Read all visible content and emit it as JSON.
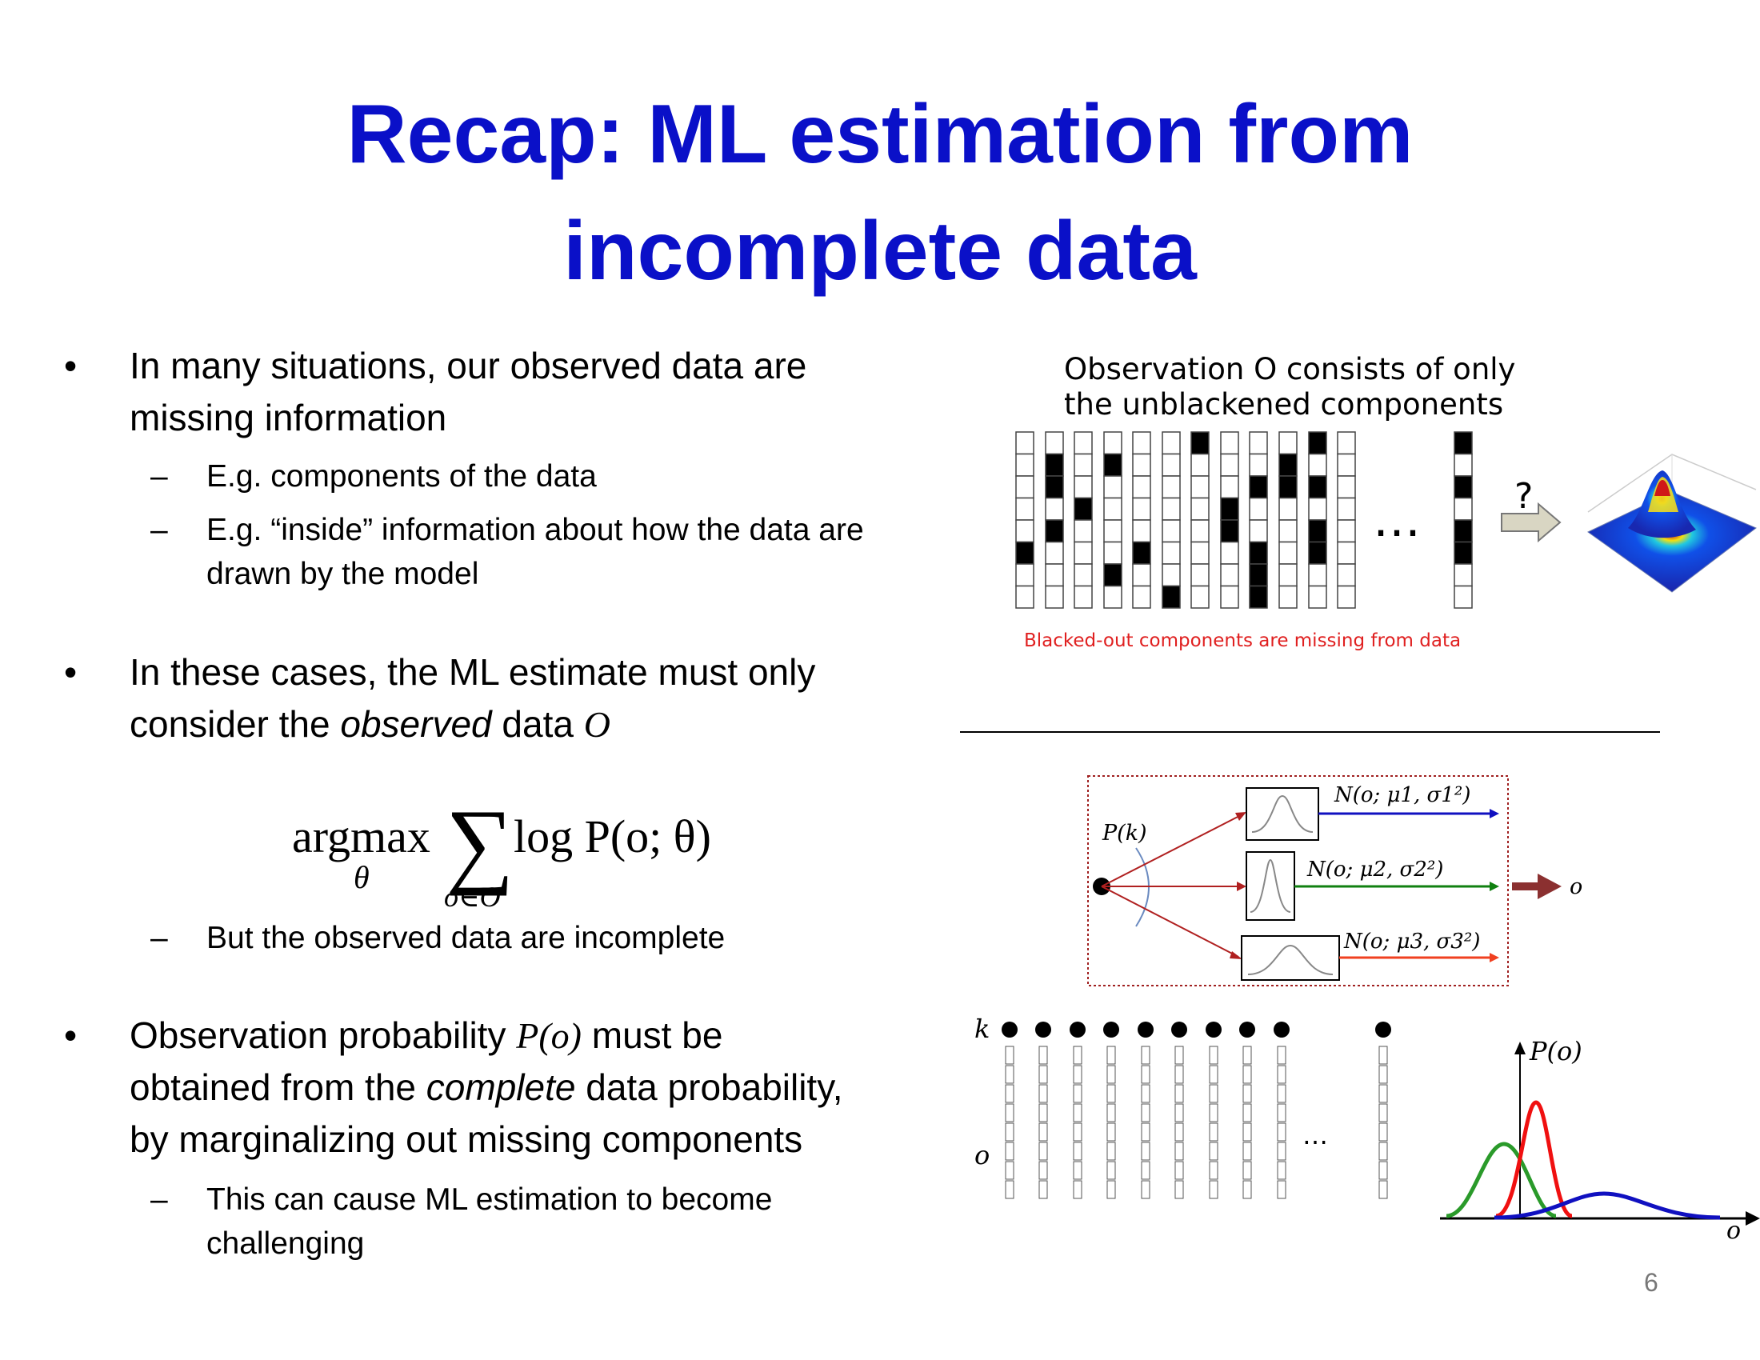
{
  "slide": {
    "title_line1": "Recap: ML estimation from",
    "title_line2": "incomplete data",
    "bullet1": {
      "line1": "In many situations, our observed data are",
      "line2": "missing information",
      "sub1": "E.g. components of the data",
      "sub2_line1": "E.g. “inside” information about how the data are",
      "sub2_line2": "drawn by the model"
    },
    "bullet2": {
      "line1": "In these cases, the ML estimate must only",
      "line2_pre": "consider the ",
      "line2_em": "observed",
      "line2_post": " data ",
      "line2_var": "O",
      "sub1": "But the observed data are incomplete"
    },
    "formula": {
      "argmax": "argmax",
      "under_argmax": "θ",
      "sum": "∑",
      "under_sum": "o∈O",
      "expr": "log P(o; θ)"
    },
    "bullet3": {
      "line1_pre": "Observation probability ",
      "line1_var": "P(o)",
      "line1_post": " must be",
      "line2_pre": "obtained from the ",
      "line2_em": "complete",
      "line2_post": " data probability,",
      "line3": "by marginalizing out missing components",
      "sub1_line1": "This can cause ML estimation to become",
      "sub1_line2": "challenging"
    },
    "page_number": "6"
  },
  "figure_top": {
    "caption_line1": "Observation O consists of only",
    "caption_line2": "the unblackened components",
    "ellipsis": "…",
    "question": "?",
    "missing_note": "Blacked-out components are missing from data",
    "blacked_cells": [
      [
        0,
        5
      ],
      [
        1,
        1
      ],
      [
        1,
        2
      ],
      [
        1,
        4
      ],
      [
        2,
        3
      ],
      [
        3,
        1
      ],
      [
        3,
        6
      ],
      [
        4,
        5
      ],
      [
        5,
        7
      ],
      [
        6,
        0
      ],
      [
        7,
        3
      ],
      [
        7,
        4
      ],
      [
        8,
        2
      ],
      [
        8,
        5
      ],
      [
        8,
        6
      ],
      [
        8,
        7
      ],
      [
        9,
        1
      ],
      [
        9,
        2
      ],
      [
        10,
        0
      ],
      [
        10,
        2
      ],
      [
        10,
        4
      ],
      [
        10,
        5
      ]
    ]
  },
  "figure_mixture": {
    "pk_label": "P(k)",
    "gauss1_label": "N(o; μ1, σ1²)",
    "gauss2_label": "N(o; μ2, σ2²)",
    "gauss3_label": "N(o; μ3, σ3²)",
    "output_label": "o",
    "colors": {
      "g1": "#1010c0",
      "g2": "#108010",
      "g3": "#f04020",
      "frame": "#a02020",
      "arrow": "#8b3030"
    }
  },
  "figure_bottom": {
    "k_label": "k",
    "o_label": "o",
    "ellipsis": "…",
    "py_label": "P(o)",
    "px_label": "o"
  }
}
